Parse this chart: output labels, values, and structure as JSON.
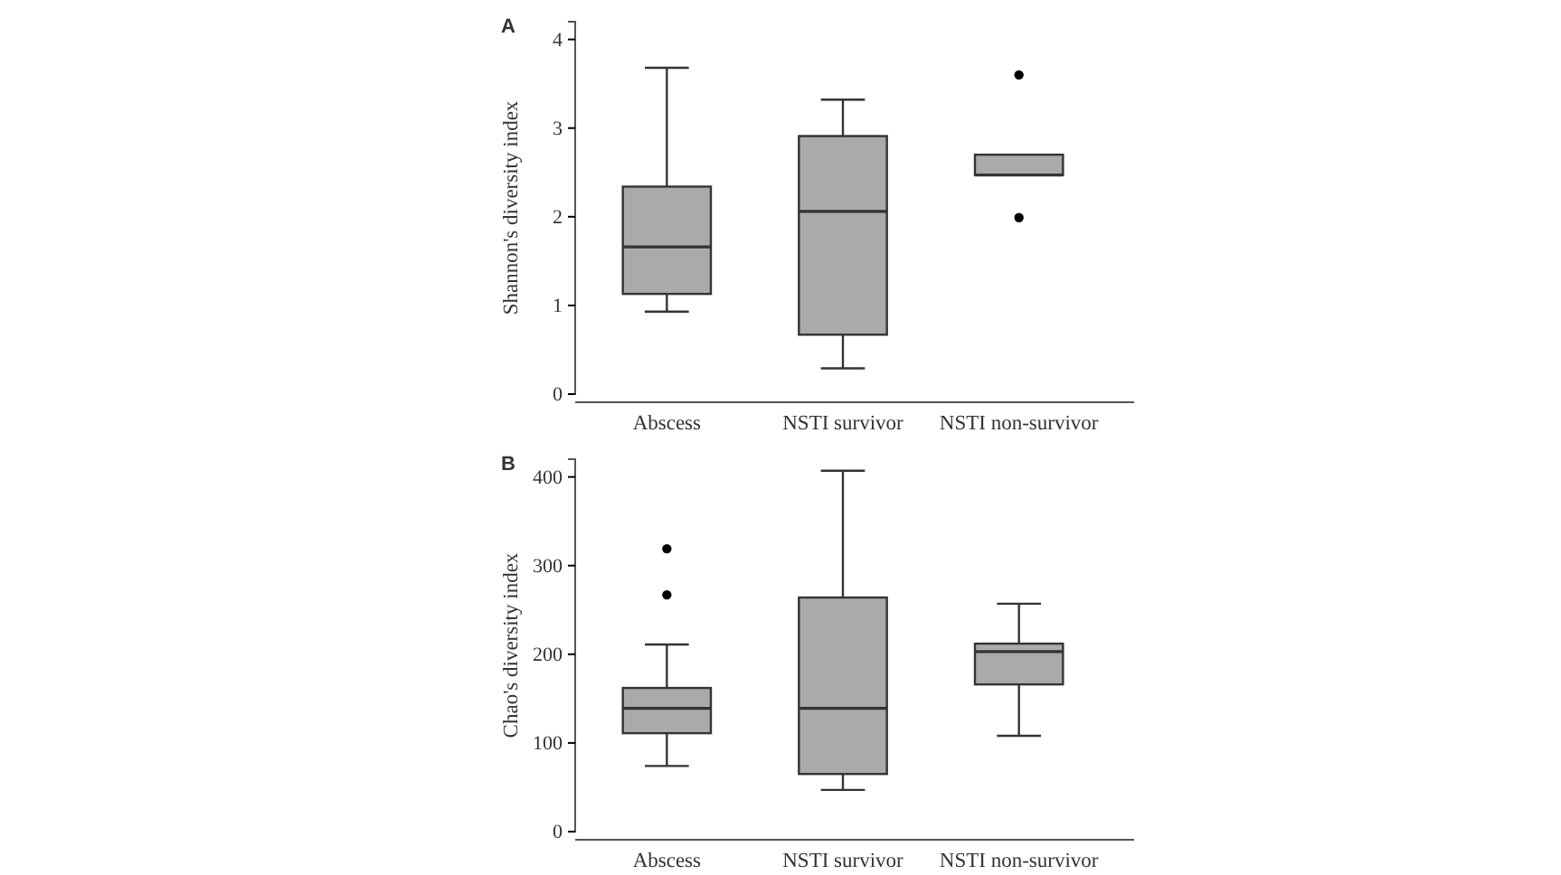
{
  "chart_data": [
    {
      "type": "box",
      "title": "A",
      "ylabel": "Shannon's diversity index",
      "categories": [
        "Abscess",
        "NSTI survivor",
        "NSTI non-survivor"
      ],
      "color": "#aaaaaa",
      "ylim": [
        0,
        4.2
      ],
      "yticks": [
        0,
        1,
        2,
        3,
        4
      ],
      "grid": false,
      "boxes": [
        {
          "low": 0.93,
          "q1": 1.13,
          "median": 1.66,
          "q3": 2.34,
          "high": 3.68
        },
        {
          "low": 0.29,
          "q1": 0.67,
          "median": 2.06,
          "q3": 2.91,
          "high": 3.32
        },
        {
          "low": 2.47,
          "q1": 2.47,
          "median": 2.47,
          "q3": 2.7,
          "high": 2.7,
          "outliers": [
            3.6,
            1.99
          ]
        }
      ]
    },
    {
      "type": "box",
      "title": "B",
      "ylabel": "Chao's diversity index",
      "categories": [
        "Abscess",
        "NSTI survivor",
        "NSTI non-survivor"
      ],
      "color": "#aaaaaa",
      "ylim": [
        0,
        420
      ],
      "yticks": [
        0,
        100,
        200,
        300,
        400
      ],
      "grid": false,
      "boxes": [
        {
          "low": 74,
          "q1": 111,
          "median": 139,
          "q3": 162,
          "high": 211,
          "outliers": [
            319,
            267
          ]
        },
        {
          "low": 47,
          "q1": 65,
          "median": 139,
          "q3": 264,
          "high": 407
        },
        {
          "low": 108,
          "q1": 166,
          "median": 203,
          "q3": 212,
          "high": 257
        }
      ]
    }
  ]
}
